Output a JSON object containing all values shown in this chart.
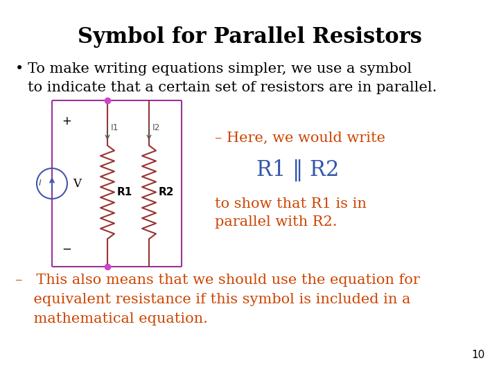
{
  "title": "Symbol for Parallel Resistors",
  "title_fontsize": 22,
  "title_fontweight": "bold",
  "background_color": "#ffffff",
  "bullet_text": "To make writing equations simpler, we use a symbol\nto indicate that a certain set of resistors are in parallel.",
  "bullet_color": "#000000",
  "bullet_fontsize": 15,
  "here_text": "– Here, we would write",
  "here_color": "#cc4400",
  "here_fontsize": 15,
  "r1r2_text": "R1 ‖ R2",
  "r1r2_color": "#3355aa",
  "r1r2_fontsize": 22,
  "toshow_text": "to show that R1 is in\nparallel with R2.",
  "toshow_color": "#cc4400",
  "toshow_fontsize": 15,
  "dash_text": "–   This also means that we should use the equation for\n    equivalent resistance if this symbol is included in a\n    mathematical equation.",
  "dash_color": "#cc4400",
  "dash_fontsize": 15,
  "page_number": "10",
  "page_color": "#000000",
  "page_fontsize": 11,
  "wire_color": "#993399",
  "resistor_color": "#993333",
  "dot_color": "#cc44cc",
  "vs_color": "#4455aa",
  "current_color": "#555555"
}
